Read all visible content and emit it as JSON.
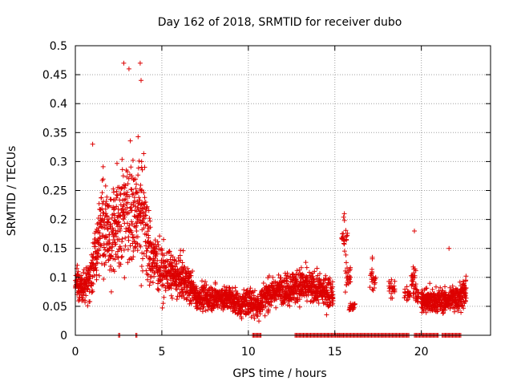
{
  "chart_data": {
    "type": "scatter",
    "title": "Day 162 of 2018, SRMTID for receiver dubo",
    "xlabel": "GPS time / hours",
    "ylabel": "SRMTID / TECUs",
    "xlim": [
      0,
      24
    ],
    "ylim": [
      0,
      0.5
    ],
    "x_ticks": [
      0,
      5,
      10,
      15,
      20
    ],
    "x_tick_labels": [
      "0",
      "5",
      "10",
      "15",
      "20"
    ],
    "y_ticks": [
      0,
      0.05,
      0.1,
      0.15,
      0.2,
      0.25,
      0.3,
      0.35,
      0.4,
      0.45,
      0.5
    ],
    "y_tick_labels": [
      "0",
      "0.05",
      "0.1",
      "0.15",
      "0.2",
      "0.25",
      "0.3",
      "0.35",
      "0.4",
      "0.45",
      "0.5"
    ],
    "grid": true,
    "marker": "plus",
    "colors": {
      "points": "#dd0000",
      "grid": "#a0a0a0",
      "frame": "#000000"
    },
    "series": [
      {
        "name": "SRMTID",
        "profile": [
          {
            "x": 0.0,
            "center": 0.09,
            "spread": 0.03
          },
          {
            "x": 0.5,
            "center": 0.08,
            "spread": 0.03
          },
          {
            "x": 1.0,
            "center": 0.11,
            "spread": 0.05
          },
          {
            "x": 1.5,
            "center": 0.2,
            "spread": 0.1
          },
          {
            "x": 2.0,
            "center": 0.17,
            "spread": 0.09
          },
          {
            "x": 2.5,
            "center": 0.2,
            "spread": 0.1
          },
          {
            "x": 3.0,
            "center": 0.23,
            "spread": 0.13
          },
          {
            "x": 3.5,
            "center": 0.2,
            "spread": 0.1
          },
          {
            "x": 3.8,
            "center": 0.23,
            "spread": 0.14
          },
          {
            "x": 4.3,
            "center": 0.14,
            "spread": 0.07
          },
          {
            "x": 5.0,
            "center": 0.11,
            "spread": 0.05
          },
          {
            "x": 6.0,
            "center": 0.1,
            "spread": 0.04
          },
          {
            "x": 6.6,
            "center": 0.09,
            "spread": 0.04
          },
          {
            "x": 7.0,
            "center": 0.065,
            "spread": 0.025
          },
          {
            "x": 8.0,
            "center": 0.065,
            "spread": 0.025
          },
          {
            "x": 9.0,
            "center": 0.065,
            "spread": 0.025
          },
          {
            "x": 9.5,
            "center": 0.05,
            "spread": 0.025
          },
          {
            "x": 10.0,
            "center": 0.06,
            "spread": 0.03
          },
          {
            "x": 10.5,
            "center": 0.05,
            "spread": 0.03
          },
          {
            "x": 11.0,
            "center": 0.07,
            "spread": 0.03
          },
          {
            "x": 12.0,
            "center": 0.08,
            "spread": 0.03
          },
          {
            "x": 13.0,
            "center": 0.085,
            "spread": 0.035
          },
          {
            "x": 14.0,
            "center": 0.08,
            "spread": 0.03
          },
          {
            "x": 14.5,
            "center": 0.075,
            "spread": 0.03
          },
          {
            "x": 20.5,
            "center": 0.06,
            "spread": 0.025
          },
          {
            "x": 21.5,
            "center": 0.06,
            "spread": 0.025
          },
          {
            "x": 22.6,
            "center": 0.075,
            "spread": 0.03
          }
        ],
        "clusters": [
          {
            "x": 15.55,
            "y": 0.17,
            "spread": 0.04
          },
          {
            "x": 15.75,
            "y": 0.1,
            "spread": 0.03
          },
          {
            "x": 16.0,
            "y": 0.05,
            "spread": 0.01
          },
          {
            "x": 17.2,
            "y": 0.1,
            "spread": 0.035
          },
          {
            "x": 18.3,
            "y": 0.08,
            "spread": 0.025
          },
          {
            "x": 19.2,
            "y": 0.07,
            "spread": 0.02
          },
          {
            "x": 19.55,
            "y": 0.1,
            "spread": 0.03
          },
          {
            "x": 19.7,
            "y": 0.07,
            "spread": 0.02
          },
          {
            "x": 20.2,
            "y": 0.06,
            "spread": 0.02
          }
        ],
        "outliers": [
          {
            "x": 2.8,
            "y": 0.47
          },
          {
            "x": 3.1,
            "y": 0.46
          },
          {
            "x": 3.75,
            "y": 0.47
          },
          {
            "x": 3.8,
            "y": 0.44
          },
          {
            "x": 1.0,
            "y": 0.33
          },
          {
            "x": 15.55,
            "y": 0.21
          },
          {
            "x": 19.6,
            "y": 0.18
          },
          {
            "x": 21.6,
            "y": 0.15
          }
        ],
        "zero_values": [
          {
            "from": 2.5,
            "to": 2.6
          },
          {
            "from": 3.5,
            "to": 3.6
          },
          {
            "from": 10.25,
            "to": 10.75
          },
          {
            "from": 12.7,
            "to": 15.2
          },
          {
            "from": 15.2,
            "to": 19.3
          },
          {
            "from": 19.6,
            "to": 21.0
          },
          {
            "from": 21.2,
            "to": 22.3
          }
        ]
      }
    ]
  }
}
